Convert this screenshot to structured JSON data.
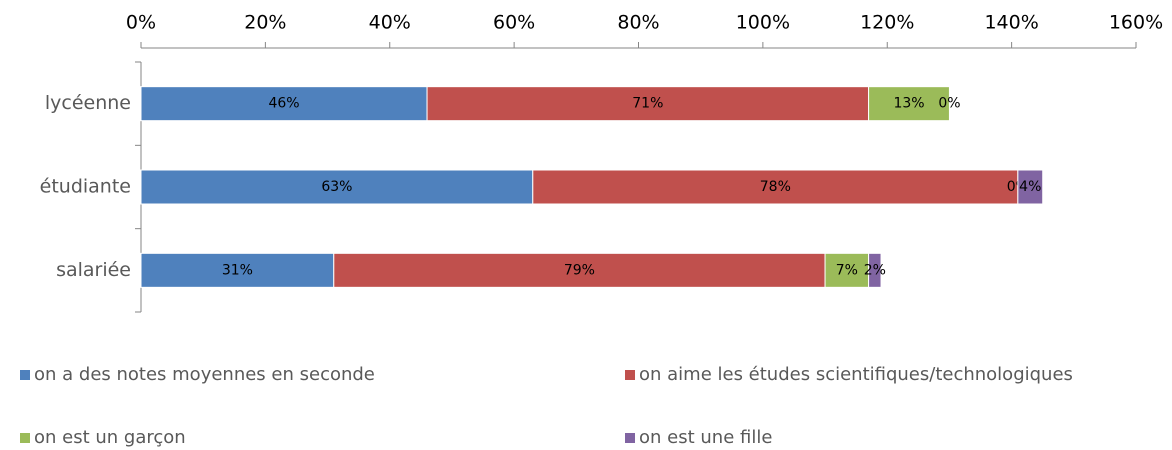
{
  "chart_data": {
    "type": "stacked-bar-horizontal",
    "categories": [
      "lycéenne",
      "étudiante",
      "salariée"
    ],
    "series": [
      {
        "name": "on a des notes moyennes en seconde",
        "color": "#4f81bd",
        "values": [
          46,
          63,
          31
        ],
        "value_labels": [
          "46%",
          "63%",
          "31%"
        ]
      },
      {
        "name": "on aime les études scientifiques/technologiques",
        "color": "#c0504d",
        "values": [
          71,
          78,
          79
        ],
        "value_labels": [
          "71%",
          "78%",
          "79%"
        ]
      },
      {
        "name": "on est un garçon",
        "color": "#9bbb59",
        "values": [
          13,
          0,
          7
        ],
        "value_labels": [
          "13%",
          "0%",
          "7%"
        ]
      },
      {
        "name": "on est une fille",
        "color": "#8064a2",
        "values": [
          0,
          4,
          2
        ],
        "value_labels": [
          "0%",
          "4%",
          "2%"
        ]
      }
    ],
    "xlim": [
      0,
      160
    ],
    "xticks": [
      {
        "value": 0,
        "label": "0%"
      },
      {
        "value": 20,
        "label": "20%"
      },
      {
        "value": 40,
        "label": "40%"
      },
      {
        "value": 60,
        "label": "60%"
      },
      {
        "value": 80,
        "label": "80%"
      },
      {
        "value": 100,
        "label": "100%"
      },
      {
        "value": 120,
        "label": "120%"
      },
      {
        "value": 140,
        "label": "140%"
      },
      {
        "value": 160,
        "label": "160%"
      }
    ],
    "legend": "bottom"
  }
}
